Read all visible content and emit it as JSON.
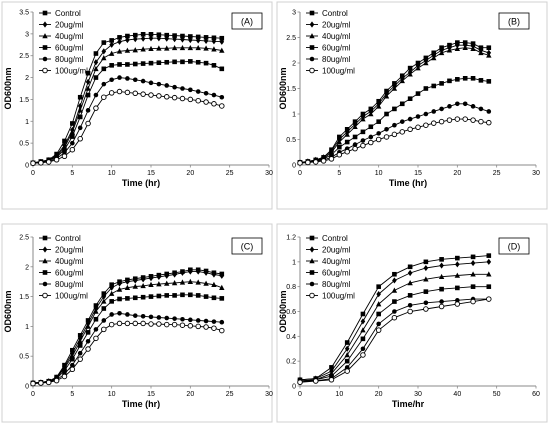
{
  "chart_data": [
    {
      "type": "line",
      "panel_label": "(A)",
      "xlabel": "Time (hr)",
      "ylabel": "OD600nm",
      "xlim": [
        0,
        30
      ],
      "ylim": [
        0,
        3.5
      ],
      "xticks": [
        0,
        5,
        10,
        15,
        20,
        25,
        30
      ],
      "yticks": [
        0,
        0.5,
        1,
        1.5,
        2,
        2.5,
        3,
        3.5
      ],
      "x": [
        0,
        1,
        2,
        3,
        4,
        5,
        6,
        7,
        8,
        9,
        10,
        11,
        12,
        13,
        14,
        15,
        16,
        17,
        18,
        19,
        20,
        21,
        22,
        23,
        24
      ],
      "legend_position": "top-left",
      "series": [
        {
          "name": "Control",
          "marker": "square",
          "values": [
            0.05,
            0.08,
            0.12,
            0.25,
            0.55,
            0.95,
            1.55,
            2.1,
            2.55,
            2.8,
            2.85,
            2.92,
            2.95,
            2.97,
            2.99,
            2.99,
            2.98,
            2.97,
            2.96,
            2.95,
            2.94,
            2.93,
            2.92,
            2.91,
            2.9
          ]
        },
        {
          "name": "20ug/ml",
          "marker": "diamond",
          "values": [
            0.05,
            0.07,
            0.11,
            0.22,
            0.45,
            0.8,
            1.35,
            1.9,
            2.35,
            2.6,
            2.75,
            2.82,
            2.86,
            2.88,
            2.89,
            2.9,
            2.9,
            2.89,
            2.88,
            2.87,
            2.86,
            2.85,
            2.84,
            2.83,
            2.82
          ]
        },
        {
          "name": "40ug/ml",
          "marker": "triangle",
          "values": [
            0.05,
            0.07,
            0.1,
            0.2,
            0.4,
            0.75,
            1.25,
            1.75,
            2.2,
            2.45,
            2.55,
            2.6,
            2.62,
            2.63,
            2.65,
            2.66,
            2.67,
            2.67,
            2.68,
            2.68,
            2.68,
            2.68,
            2.67,
            2.65,
            2.62
          ]
        },
        {
          "name": "60ug/ml",
          "marker": "filled-square",
          "values": [
            0.05,
            0.07,
            0.1,
            0.18,
            0.35,
            0.65,
            1.1,
            1.6,
            2.0,
            2.2,
            2.28,
            2.3,
            2.3,
            2.31,
            2.32,
            2.33,
            2.34,
            2.35,
            2.36,
            2.36,
            2.37,
            2.35,
            2.33,
            2.28,
            2.2
          ]
        },
        {
          "name": "80ug/ml",
          "marker": "filled-circle",
          "values": [
            0.05,
            0.06,
            0.08,
            0.15,
            0.28,
            0.5,
            0.85,
            1.25,
            1.6,
            1.85,
            1.95,
            2.0,
            1.98,
            1.95,
            1.92,
            1.88,
            1.85,
            1.82,
            1.78,
            1.75,
            1.72,
            1.68,
            1.64,
            1.6,
            1.55
          ]
        },
        {
          "name": "100ug/ml",
          "marker": "open-circle",
          "values": [
            0.04,
            0.05,
            0.07,
            0.12,
            0.2,
            0.35,
            0.6,
            0.95,
            1.3,
            1.55,
            1.65,
            1.68,
            1.66,
            1.64,
            1.62,
            1.6,
            1.58,
            1.56,
            1.54,
            1.52,
            1.5,
            1.47,
            1.44,
            1.4,
            1.35
          ]
        }
      ]
    },
    {
      "type": "line",
      "panel_label": "(B)",
      "xlabel": "Time (hr)",
      "ylabel": "OD600nm",
      "xlim": [
        0,
        30
      ],
      "ylim": [
        0,
        3
      ],
      "xticks": [
        0,
        5,
        10,
        15,
        20,
        25,
        30
      ],
      "yticks": [
        0,
        0.5,
        1,
        1.5,
        2,
        2.5,
        3
      ],
      "x": [
        0,
        1,
        2,
        3,
        4,
        5,
        6,
        7,
        8,
        9,
        10,
        11,
        12,
        13,
        14,
        15,
        16,
        17,
        18,
        19,
        20,
        21,
        22,
        23,
        24
      ],
      "legend_position": "top-left",
      "series": [
        {
          "name": "Control",
          "marker": "square",
          "values": [
            0.05,
            0.07,
            0.1,
            0.15,
            0.3,
            0.55,
            0.7,
            0.85,
            1.0,
            1.1,
            1.25,
            1.45,
            1.6,
            1.75,
            1.9,
            2.0,
            2.1,
            2.2,
            2.3,
            2.35,
            2.4,
            2.4,
            2.38,
            2.3,
            2.3
          ]
        },
        {
          "name": "20ug/ml",
          "marker": "diamond",
          "values": [
            0.05,
            0.07,
            0.1,
            0.15,
            0.28,
            0.5,
            0.65,
            0.8,
            0.95,
            1.05,
            1.2,
            1.4,
            1.55,
            1.7,
            1.82,
            1.95,
            2.05,
            2.15,
            2.25,
            2.3,
            2.35,
            2.35,
            2.33,
            2.25,
            2.2
          ]
        },
        {
          "name": "40ug/ml",
          "marker": "triangle",
          "values": [
            0.05,
            0.06,
            0.09,
            0.13,
            0.25,
            0.45,
            0.6,
            0.75,
            0.9,
            1.0,
            1.15,
            1.35,
            1.5,
            1.65,
            1.78,
            1.9,
            2.0,
            2.1,
            2.2,
            2.25,
            2.28,
            2.3,
            2.28,
            2.2,
            2.15
          ]
        },
        {
          "name": "60ug/ml",
          "marker": "filled-square",
          "values": [
            0.05,
            0.06,
            0.08,
            0.12,
            0.2,
            0.35,
            0.45,
            0.55,
            0.65,
            0.75,
            0.85,
            1.0,
            1.1,
            1.2,
            1.3,
            1.4,
            1.5,
            1.55,
            1.6,
            1.65,
            1.68,
            1.7,
            1.7,
            1.66,
            1.64
          ]
        },
        {
          "name": "80ug/ml",
          "marker": "filled-circle",
          "values": [
            0.04,
            0.05,
            0.07,
            0.1,
            0.15,
            0.25,
            0.32,
            0.4,
            0.48,
            0.55,
            0.62,
            0.7,
            0.78,
            0.85,
            0.9,
            0.95,
            1.0,
            1.05,
            1.1,
            1.15,
            1.2,
            1.2,
            1.15,
            1.1,
            1.05
          ]
        },
        {
          "name": "100ug/ml",
          "marker": "open-circle",
          "values": [
            0.04,
            0.05,
            0.06,
            0.08,
            0.12,
            0.2,
            0.26,
            0.32,
            0.38,
            0.44,
            0.5,
            0.55,
            0.6,
            0.65,
            0.7,
            0.74,
            0.78,
            0.82,
            0.85,
            0.88,
            0.9,
            0.9,
            0.88,
            0.85,
            0.83
          ]
        }
      ]
    },
    {
      "type": "line",
      "panel_label": "(C)",
      "xlabel": "Time (hr)",
      "ylabel": "OD600nm",
      "xlim": [
        0,
        30
      ],
      "ylim": [
        0,
        2.5
      ],
      "xticks": [
        0,
        5,
        10,
        15,
        20,
        25,
        30
      ],
      "yticks": [
        0,
        0.5,
        1,
        1.5,
        2,
        2.5
      ],
      "x": [
        0,
        1,
        2,
        3,
        4,
        5,
        6,
        7,
        8,
        9,
        10,
        11,
        12,
        13,
        14,
        15,
        16,
        17,
        18,
        19,
        20,
        21,
        22,
        23,
        24
      ],
      "legend_position": "top-left",
      "series": [
        {
          "name": "Control",
          "marker": "square",
          "values": [
            0.05,
            0.06,
            0.08,
            0.15,
            0.35,
            0.6,
            0.85,
            1.1,
            1.35,
            1.55,
            1.7,
            1.75,
            1.78,
            1.8,
            1.82,
            1.84,
            1.86,
            1.88,
            1.9,
            1.92,
            1.95,
            1.95,
            1.93,
            1.9,
            1.88
          ]
        },
        {
          "name": "20ug/ml",
          "marker": "diamond",
          "values": [
            0.05,
            0.06,
            0.08,
            0.14,
            0.32,
            0.55,
            0.8,
            1.05,
            1.3,
            1.5,
            1.65,
            1.72,
            1.75,
            1.77,
            1.79,
            1.81,
            1.83,
            1.85,
            1.87,
            1.9,
            1.92,
            1.92,
            1.9,
            1.87,
            1.85
          ]
        },
        {
          "name": "40ug/ml",
          "marker": "triangle",
          "values": [
            0.05,
            0.06,
            0.08,
            0.13,
            0.3,
            0.5,
            0.75,
            1.0,
            1.25,
            1.42,
            1.55,
            1.62,
            1.65,
            1.67,
            1.68,
            1.7,
            1.71,
            1.72,
            1.73,
            1.74,
            1.75,
            1.74,
            1.72,
            1.7,
            1.65
          ]
        },
        {
          "name": "60ug/ml",
          "marker": "filled-square",
          "values": [
            0.05,
            0.06,
            0.07,
            0.12,
            0.26,
            0.45,
            0.68,
            0.9,
            1.12,
            1.3,
            1.42,
            1.46,
            1.47,
            1.48,
            1.49,
            1.5,
            1.51,
            1.52,
            1.52,
            1.53,
            1.53,
            1.52,
            1.5,
            1.48,
            1.47
          ]
        },
        {
          "name": "80ug/ml",
          "marker": "filled-circle",
          "values": [
            0.04,
            0.05,
            0.07,
            0.1,
            0.2,
            0.35,
            0.55,
            0.75,
            0.95,
            1.1,
            1.2,
            1.22,
            1.2,
            1.18,
            1.17,
            1.16,
            1.15,
            1.14,
            1.13,
            1.12,
            1.11,
            1.1,
            1.09,
            1.08,
            1.07
          ]
        },
        {
          "name": "100ug/ml",
          "marker": "open-circle",
          "values": [
            0.04,
            0.05,
            0.06,
            0.09,
            0.16,
            0.28,
            0.45,
            0.62,
            0.8,
            0.95,
            1.03,
            1.05,
            1.05,
            1.05,
            1.05,
            1.04,
            1.04,
            1.03,
            1.03,
            1.02,
            1.01,
            1.0,
            0.99,
            0.97,
            0.93
          ]
        }
      ]
    },
    {
      "type": "line",
      "panel_label": "(D)",
      "xlabel": "Time/hr",
      "ylabel": "OD600nm",
      "xlim": [
        0,
        60
      ],
      "ylim": [
        0,
        1.2
      ],
      "xticks": [
        0,
        10,
        20,
        30,
        40,
        50,
        60
      ],
      "yticks": [
        0,
        0.2,
        0.4,
        0.6,
        0.8,
        1,
        1.2
      ],
      "x": [
        0,
        4,
        8,
        12,
        16,
        20,
        24,
        28,
        32,
        36,
        40,
        44,
        48
      ],
      "legend_position": "top-left",
      "series": [
        {
          "name": "Control",
          "marker": "square",
          "values": [
            0.05,
            0.06,
            0.15,
            0.35,
            0.58,
            0.8,
            0.9,
            0.96,
            1.0,
            1.02,
            1.03,
            1.04,
            1.05
          ]
        },
        {
          "name": "20ug/ml",
          "marker": "diamond",
          "values": [
            0.05,
            0.06,
            0.12,
            0.3,
            0.52,
            0.74,
            0.85,
            0.91,
            0.95,
            0.97,
            0.98,
            0.99,
            1.0
          ]
        },
        {
          "name": "40ug/ml",
          "marker": "triangle",
          "values": [
            0.04,
            0.05,
            0.1,
            0.25,
            0.45,
            0.66,
            0.77,
            0.83,
            0.86,
            0.88,
            0.89,
            0.9,
            0.9
          ]
        },
        {
          "name": "60ug/ml",
          "marker": "filled-square",
          "values": [
            0.04,
            0.05,
            0.08,
            0.2,
            0.38,
            0.58,
            0.68,
            0.73,
            0.76,
            0.78,
            0.79,
            0.8,
            0.8
          ]
        },
        {
          "name": "80ug/ml",
          "marker": "filled-circle",
          "values": [
            0.04,
            0.04,
            0.06,
            0.15,
            0.3,
            0.5,
            0.6,
            0.65,
            0.67,
            0.68,
            0.69,
            0.7,
            0.7
          ]
        },
        {
          "name": "100ug/ml",
          "marker": "open-circle",
          "values": [
            0.03,
            0.04,
            0.05,
            0.12,
            0.25,
            0.45,
            0.55,
            0.6,
            0.62,
            0.64,
            0.66,
            0.68,
            0.7
          ]
        }
      ]
    }
  ]
}
